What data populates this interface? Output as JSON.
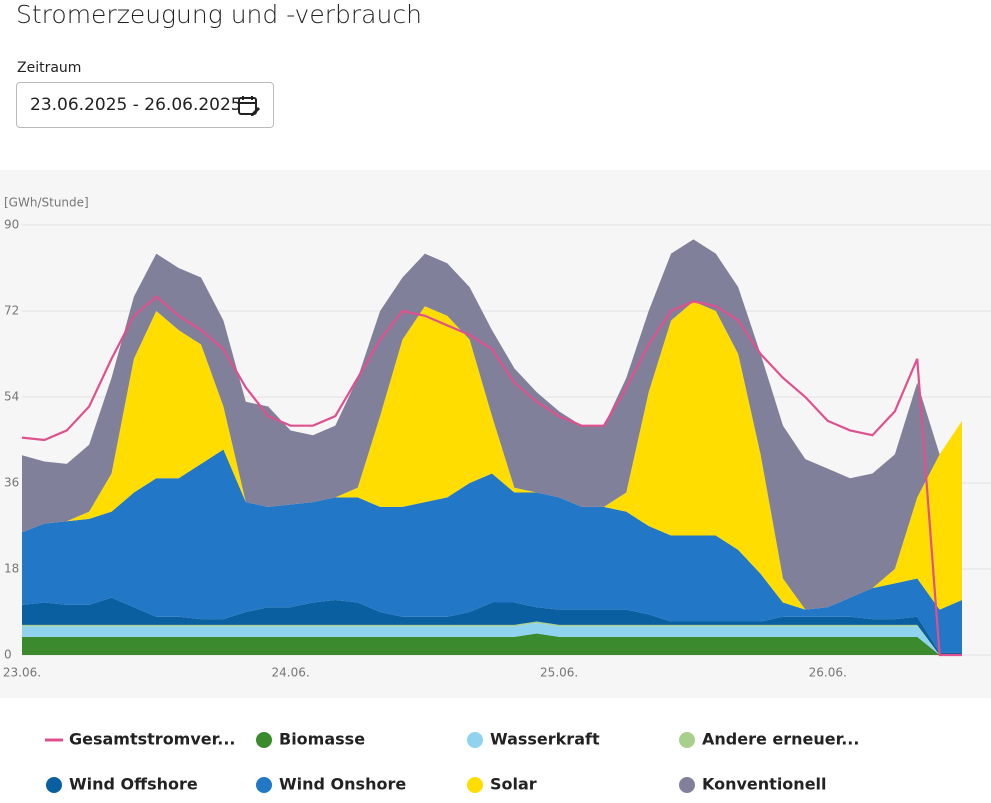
{
  "header": {
    "title": "Stromerzeugung und -verbrauch",
    "period_label": "Zeitraum",
    "period": "23.06.2025 - 26.06.2025"
  },
  "chart_data": {
    "type": "area",
    "stacked": true,
    "y_label": "[GWh/Stunde]",
    "ylim": [
      0,
      90
    ],
    "yticks": [
      0,
      18,
      36,
      54,
      72,
      90
    ],
    "grid": true,
    "categories": [
      "23.06.",
      null,
      null,
      null,
      null,
      null,
      null,
      null,
      null,
      null,
      null,
      null,
      "24.06.",
      null,
      null,
      null,
      null,
      null,
      null,
      null,
      null,
      null,
      null,
      null,
      "25.06.",
      null,
      null,
      null,
      null,
      null,
      null,
      null,
      null,
      null,
      null,
      null,
      "26.06.",
      null,
      null,
      null,
      null,
      null,
      null
    ],
    "series": [
      {
        "name": "Gesamtstromver...",
        "type": "line",
        "color": "#e0508f",
        "values": [
          45.5,
          45,
          47,
          52,
          62,
          71,
          75,
          71,
          68,
          64,
          56,
          50,
          48,
          48,
          50,
          58,
          66,
          72,
          71,
          69,
          67,
          64,
          57,
          53,
          50,
          48,
          48,
          56,
          65,
          72,
          74,
          73,
          70,
          63,
          58,
          54,
          49,
          47,
          46,
          51,
          62,
          0,
          0
        ]
      },
      {
        "name": "Biomasse",
        "color": "#3c8a2e",
        "values": [
          3.8,
          3.8,
          3.8,
          3.8,
          3.8,
          3.8,
          3.8,
          3.8,
          3.8,
          3.8,
          3.8,
          3.8,
          3.8,
          3.8,
          3.8,
          3.8,
          3.8,
          3.8,
          3.8,
          3.8,
          3.8,
          3.8,
          3.8,
          4.5,
          3.8,
          3.8,
          3.8,
          3.8,
          3.8,
          3.8,
          3.8,
          3.8,
          3.8,
          3.8,
          3.8,
          3.8,
          3.8,
          3.8,
          3.8,
          3.8,
          3.8,
          0,
          0
        ]
      },
      {
        "name": "Wasserkraft",
        "color": "#8fd3ef",
        "values": [
          2.2,
          2.2,
          2.2,
          2.2,
          2.2,
          2.2,
          2.2,
          2.2,
          2.2,
          2.2,
          2.2,
          2.2,
          2.2,
          2.2,
          2.2,
          2.2,
          2.2,
          2.2,
          2.2,
          2.2,
          2.2,
          2.2,
          2.2,
          2.2,
          2.2,
          2.2,
          2.2,
          2.2,
          2.2,
          2.2,
          2.2,
          2.2,
          2.2,
          2.2,
          2.2,
          2.2,
          2.2,
          2.2,
          2.2,
          2.2,
          2.2,
          0,
          0
        ]
      },
      {
        "name": "Andere erneuer...",
        "color": "#a8d08d",
        "values": [
          0.3,
          0.3,
          0.3,
          0.3,
          0.3,
          0.3,
          0.3,
          0.3,
          0.3,
          0.3,
          0.3,
          0.3,
          0.3,
          0.3,
          0.3,
          0.3,
          0.3,
          0.3,
          0.3,
          0.3,
          0.3,
          0.3,
          0.3,
          0.3,
          0.3,
          0.3,
          0.3,
          0.3,
          0.3,
          0.3,
          0.3,
          0.3,
          0.3,
          0.3,
          0.3,
          0.3,
          0.3,
          0.3,
          0.3,
          0.3,
          0.3,
          0,
          0
        ]
      },
      {
        "name": "Wind Offshore",
        "color": "#0a5fa0",
        "values": [
          4.2,
          4.7,
          4.2,
          4.2,
          5.7,
          3.7,
          1.7,
          1.7,
          1.2,
          1.2,
          2.7,
          3.7,
          3.7,
          4.7,
          5.2,
          4.7,
          2.7,
          1.7,
          1.7,
          1.7,
          2.7,
          4.7,
          4.7,
          3,
          3.2,
          3.2,
          3.2,
          3.2,
          2.2,
          0.7,
          0.7,
          0.7,
          0.7,
          0.7,
          1.7,
          1.7,
          1.7,
          1.7,
          1.2,
          1.2,
          1.7,
          0.5,
          0.5
        ]
      },
      {
        "name": "Wind Onshore",
        "color": "#2277c6",
        "values": [
          15.2,
          16.5,
          17.5,
          18,
          18,
          24,
          29,
          29,
          32.5,
          35.5,
          23,
          21,
          21.5,
          21,
          21.5,
          22,
          22,
          23,
          24,
          25,
          27,
          27,
          23,
          24,
          23.5,
          21.5,
          21.5,
          20.5,
          18.5,
          18,
          18,
          18,
          15,
          10,
          3,
          1.5,
          2,
          4,
          6.5,
          7.5,
          8,
          9,
          11
        ]
      },
      {
        "name": "Solar",
        "color": "#ffdd00",
        "values": [
          0,
          0,
          0,
          1.5,
          8,
          28,
          35,
          31,
          25,
          9,
          0,
          0,
          0,
          0,
          0,
          2,
          19,
          35,
          41,
          38,
          30,
          12,
          1,
          0,
          0,
          0,
          0,
          4,
          28,
          45,
          49,
          47,
          41,
          25,
          5,
          0,
          0,
          0,
          0,
          3,
          17,
          32.5,
          37.5
        ]
      },
      {
        "name": "Konventionell",
        "color": "#80809a",
        "values": [
          16.1,
          13,
          12,
          14,
          20,
          13,
          12,
          13,
          14,
          18,
          21,
          21,
          15.5,
          14,
          15,
          23,
          22,
          13,
          11,
          11,
          11,
          18,
          25,
          21,
          18,
          17,
          17,
          24,
          17,
          14,
          13,
          12,
          14,
          21,
          32,
          31.5,
          29,
          25,
          24,
          24,
          24,
          0,
          0
        ]
      }
    ]
  }
}
